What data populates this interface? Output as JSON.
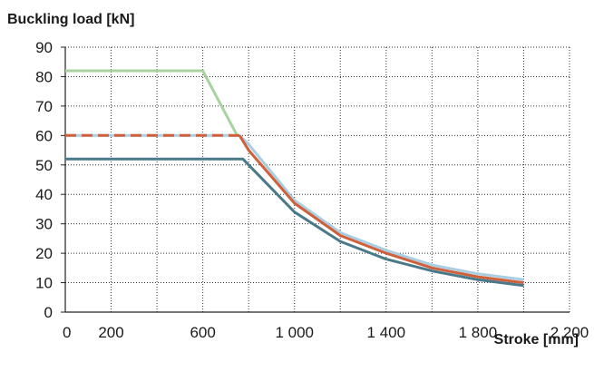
{
  "chart_data": {
    "type": "line",
    "ylabel": "Buckling load [kN]",
    "xlabel": "Stroke [mm]",
    "xlim": [
      0,
      2200
    ],
    "ylim": [
      0,
      90
    ],
    "x_ticks": [
      0,
      200,
      600,
      1000,
      1400,
      1800,
      2200
    ],
    "x_tick_labels": [
      "0",
      "200",
      "600",
      "1 000",
      "1 400",
      "1 800",
      "2 200"
    ],
    "y_ticks": [
      0,
      10,
      20,
      30,
      40,
      50,
      60,
      70,
      80,
      90
    ],
    "y_tick_labels": [
      "0",
      "10",
      "20",
      "30",
      "40",
      "50",
      "60",
      "70",
      "80",
      "90"
    ],
    "grid": true,
    "colors": {
      "green": "#a8d3a0",
      "light_blue": "#a9cde3",
      "orange": "#d0603a",
      "steel_blue": "#4a7a8a",
      "grid": "#333333",
      "axis": "#222222"
    },
    "series": [
      {
        "color": "#a8d3a0",
        "dash": "solid",
        "points": [
          [
            0,
            82
          ],
          [
            600,
            82
          ],
          [
            750,
            60
          ]
        ]
      },
      {
        "color": "#a9cde3",
        "dash": "solid",
        "points": [
          [
            0,
            60
          ],
          [
            760,
            60
          ],
          [
            800,
            57
          ],
          [
            1000,
            38
          ],
          [
            1200,
            27
          ],
          [
            1400,
            21
          ],
          [
            1600,
            16
          ],
          [
            1800,
            13
          ],
          [
            2000,
            11
          ]
        ]
      },
      {
        "color": "#d0603a",
        "dash": "dashed",
        "points": [
          [
            0,
            60
          ],
          [
            760,
            60
          ]
        ]
      },
      {
        "color": "#d0603a",
        "dash": "solid",
        "points": [
          [
            760,
            60
          ],
          [
            800,
            55
          ],
          [
            1000,
            37
          ],
          [
            1200,
            26
          ],
          [
            1400,
            20
          ],
          [
            1600,
            15
          ],
          [
            1800,
            12
          ],
          [
            2000,
            10
          ]
        ]
      },
      {
        "color": "#4a7a8a",
        "dash": "solid",
        "points": [
          [
            0,
            52
          ],
          [
            775,
            52
          ],
          [
            800,
            50
          ],
          [
            1000,
            34
          ],
          [
            1200,
            24
          ],
          [
            1400,
            18
          ],
          [
            1600,
            14
          ],
          [
            1800,
            11
          ],
          [
            2000,
            9
          ]
        ]
      }
    ]
  }
}
